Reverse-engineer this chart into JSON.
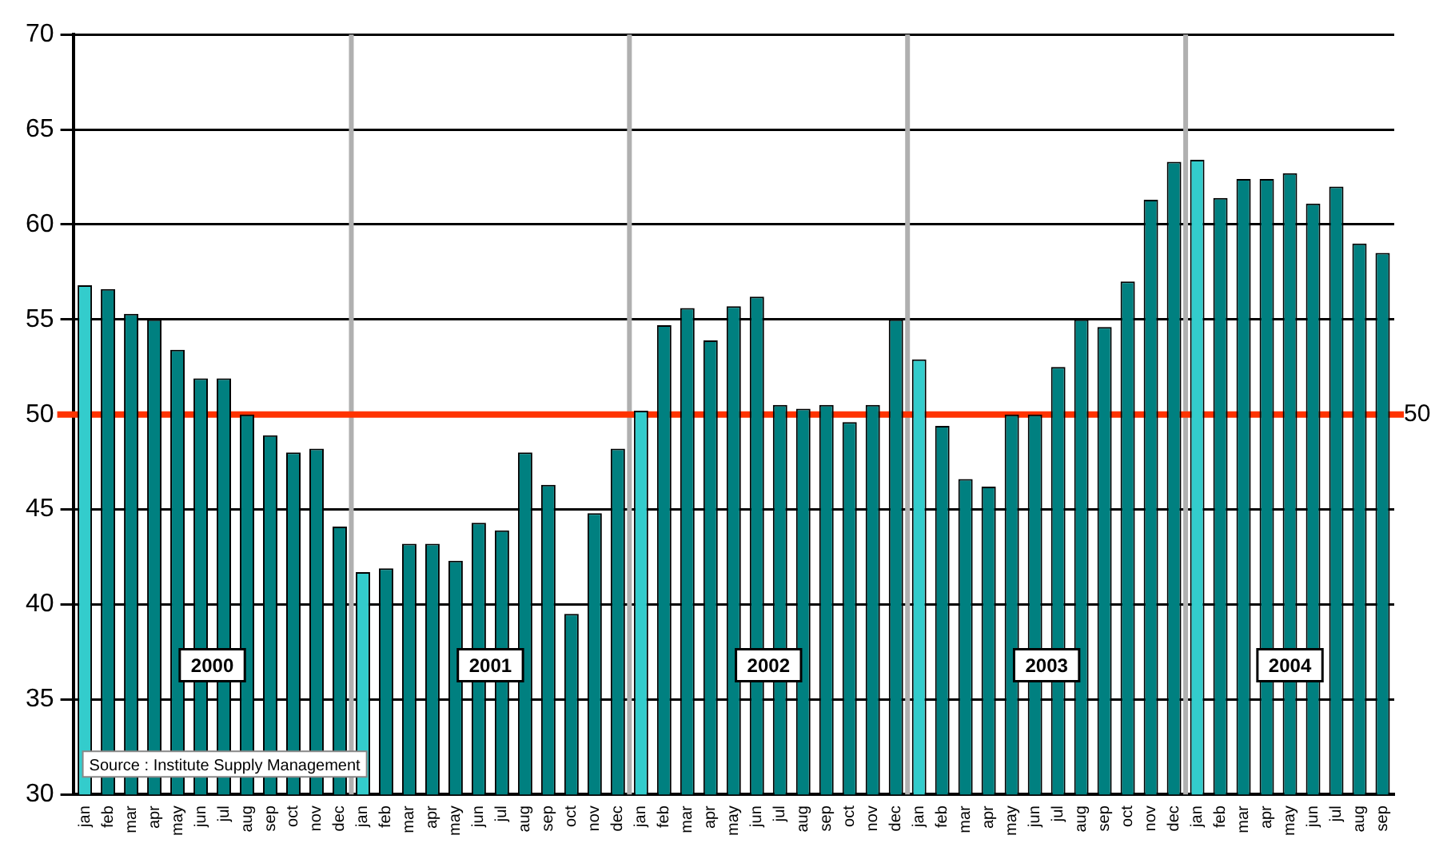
{
  "chart_data": {
    "type": "bar",
    "categories": [
      "jan",
      "feb",
      "mar",
      "apr",
      "may",
      "jun",
      "jul",
      "aug",
      "sep",
      "oct",
      "nov",
      "dec",
      "jan",
      "feb",
      "mar",
      "apr",
      "may",
      "jun",
      "jul",
      "aug",
      "sep",
      "oct",
      "nov",
      "dec",
      "jan",
      "feb",
      "mar",
      "apr",
      "may",
      "jun",
      "jul",
      "aug",
      "sep",
      "oct",
      "nov",
      "dec",
      "jan",
      "feb",
      "mar",
      "apr",
      "may",
      "jun",
      "jul",
      "aug",
      "sep",
      "oct",
      "nov",
      "dec",
      "jan",
      "feb",
      "mar",
      "apr",
      "may",
      "jun",
      "jul",
      "aug",
      "sep"
    ],
    "values": [
      56.8,
      56.6,
      55.3,
      55.0,
      53.4,
      51.9,
      51.9,
      50.0,
      48.9,
      48.0,
      48.2,
      44.1,
      41.7,
      41.9,
      43.2,
      43.2,
      42.3,
      44.3,
      43.9,
      48.0,
      46.3,
      39.5,
      44.8,
      48.2,
      50.2,
      54.7,
      55.6,
      53.9,
      55.7,
      56.2,
      50.5,
      50.3,
      50.5,
      49.6,
      50.5,
      55.0,
      52.9,
      49.4,
      46.6,
      46.2,
      50.0,
      50.0,
      52.5,
      55.0,
      54.6,
      57.0,
      61.3,
      63.3,
      63.4,
      61.4,
      62.4,
      62.4,
      62.7,
      61.1,
      62.0,
      59.0,
      58.5
    ],
    "colors": [
      "#33cccc",
      "#008080",
      "#008080",
      "#008080",
      "#008080",
      "#008080",
      "#008080",
      "#008080",
      "#008080",
      "#008080",
      "#008080",
      "#008080",
      "#33cccc",
      "#008080",
      "#008080",
      "#008080",
      "#008080",
      "#008080",
      "#008080",
      "#008080",
      "#008080",
      "#008080",
      "#008080",
      "#008080",
      "#33cccc",
      "#008080",
      "#008080",
      "#008080",
      "#008080",
      "#008080",
      "#008080",
      "#008080",
      "#008080",
      "#008080",
      "#008080",
      "#008080",
      "#33cccc",
      "#008080",
      "#008080",
      "#008080",
      "#008080",
      "#008080",
      "#008080",
      "#008080",
      "#008080",
      "#008080",
      "#008080",
      "#008080",
      "#33cccc",
      "#008080",
      "#008080",
      "#008080",
      "#008080",
      "#008080",
      "#008080",
      "#008080",
      "#008080"
    ],
    "ylim": [
      30,
      70
    ],
    "yticks": [
      30,
      35,
      40,
      45,
      50,
      55,
      60,
      65,
      70
    ],
    "grid": "y",
    "legend": false,
    "ref_lines": [
      {
        "axis": "y",
        "value": 50,
        "label": "50",
        "color": "#ff3300"
      }
    ],
    "annotations": [
      "2000",
      "2001",
      "2002",
      "2003",
      "2004",
      "Source : Institute Supply Management"
    ]
  }
}
